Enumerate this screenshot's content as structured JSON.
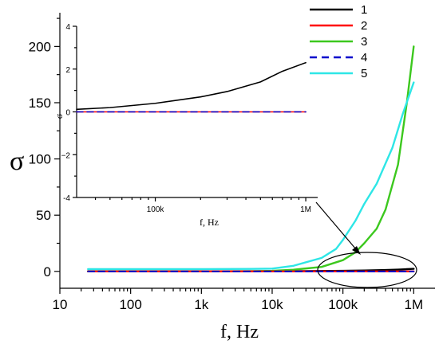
{
  "chart_data": [
    {
      "type": "line",
      "panel": "main",
      "xscale": "log",
      "xlim": [
        10,
        2000000
      ],
      "ylim": [
        -15,
        230
      ],
      "xlabel": "f, Hz",
      "ylabel": "σ",
      "xticks": [
        {
          "value": 10,
          "label": "10"
        },
        {
          "value": 100,
          "label": "100"
        },
        {
          "value": 1000,
          "label": "1k"
        },
        {
          "value": 10000,
          "label": "10k"
        },
        {
          "value": 100000,
          "label": "100k"
        },
        {
          "value": 1000000,
          "label": "1M"
        }
      ],
      "yticks": [
        {
          "value": 0,
          "label": "0"
        },
        {
          "value": 50,
          "label": "50"
        },
        {
          "value": 100,
          "label": "100"
        },
        {
          "value": 150,
          "label": "150"
        },
        {
          "value": 200,
          "label": "200"
        }
      ],
      "legend": "top-right",
      "series": [
        {
          "name": "1",
          "color": "#000000",
          "dash": "solid",
          "x": [
            25,
            100,
            1000,
            10000,
            30000,
            100000,
            200000,
            400000,
            600000,
            800000,
            1000000
          ],
          "y": [
            0.1,
            0.1,
            0.1,
            0.2,
            0.3,
            0.5,
            0.8,
            1.2,
            1.6,
            2.0,
            2.3
          ]
        },
        {
          "name": "2",
          "color": "#ff0000",
          "dash": "solid",
          "x": [
            25,
            100,
            1000,
            10000,
            100000,
            1000000
          ],
          "y": [
            0,
            0,
            0,
            0,
            0,
            0
          ]
        },
        {
          "name": "3",
          "color": "#3cc81e",
          "dash": "solid",
          "x": [
            25,
            100,
            1000,
            5000,
            10000,
            20000,
            50000,
            100000,
            150000,
            200000,
            300000,
            400000,
            600000,
            800000,
            1000000
          ],
          "y": [
            0,
            0,
            0,
            0.2,
            0.5,
            1.5,
            4,
            10,
            17,
            25,
            38,
            55,
            95,
            150,
            200
          ]
        },
        {
          "name": "4",
          "color": "#0000cc",
          "dash": "dashed",
          "x": [
            25,
            100,
            1000,
            10000,
            100000,
            1000000
          ],
          "y": [
            0,
            0,
            0,
            0,
            0,
            0
          ]
        },
        {
          "name": "5",
          "color": "#2ee6e6",
          "dash": "solid",
          "x": [
            25,
            100,
            1000,
            5000,
            10000,
            20000,
            50000,
            80000,
            100000,
            150000,
            200000,
            300000,
            500000,
            700000,
            1000000
          ],
          "y": [
            2,
            2,
            2,
            2.2,
            2.5,
            5,
            12,
            20,
            28,
            45,
            60,
            78,
            110,
            140,
            168
          ]
        }
      ]
    },
    {
      "type": "line",
      "panel": "inset",
      "xscale": "log",
      "xlim": [
        30000,
        1200000
      ],
      "ylim": [
        -4,
        4
      ],
      "xlabel": "f, Hz",
      "ylabel": "σ",
      "xticks": [
        {
          "value": 100000,
          "label": "100k"
        },
        {
          "value": 1000000,
          "label": "1M"
        }
      ],
      "yticks": [
        {
          "value": -4,
          "label": "-4"
        },
        {
          "value": -2,
          "label": "−2"
        },
        {
          "value": 0,
          "label": "0"
        },
        {
          "value": 2,
          "label": "2"
        },
        {
          "value": 4,
          "label": "4"
        }
      ],
      "series": [
        {
          "name": "1",
          "color": "#000000",
          "dash": "solid",
          "x": [
            30000,
            50000,
            100000,
            200000,
            300000,
            500000,
            700000,
            1000000
          ],
          "y": [
            0.12,
            0.2,
            0.4,
            0.7,
            0.95,
            1.4,
            1.9,
            2.3
          ]
        },
        {
          "name": "2",
          "color": "#ff0000",
          "dash": "solid",
          "x": [
            30000,
            1000000
          ],
          "y": [
            0,
            0
          ]
        },
        {
          "name": "4",
          "color": "#0000cc",
          "dash": "dashed",
          "x": [
            30000,
            1000000
          ],
          "y": [
            0,
            0
          ]
        }
      ]
    }
  ]
}
